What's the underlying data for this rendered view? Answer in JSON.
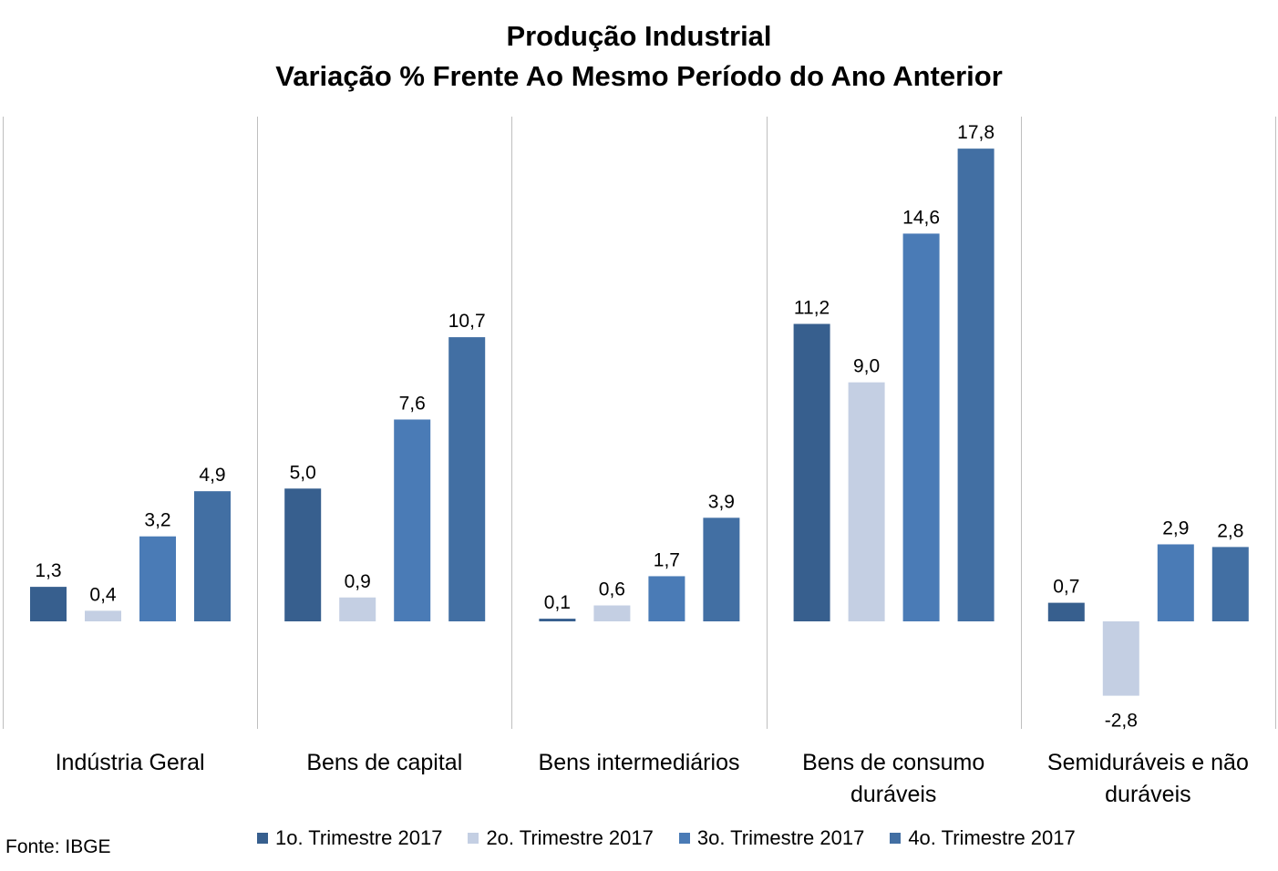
{
  "chart_data": {
    "type": "bar",
    "title": "Produção Industrial",
    "subtitle": "Variação % Frente Ao Mesmo Período do Ano Anterior",
    "categories": [
      "Indústria Geral",
      "Bens de capital",
      "Bens intermediários",
      "Bens de consumo duráveis",
      "Semiduráveis e não duráveis"
    ],
    "series": [
      {
        "name": "1o. Trimestre 2017",
        "color": "#375F8E",
        "values": [
          1.3,
          5.0,
          0.1,
          11.2,
          0.7
        ],
        "labels": [
          "1,3",
          "5,0",
          "0,1",
          "11,2",
          "0,7"
        ]
      },
      {
        "name": "2o. Trimestre 2017",
        "color": "#C4CFE3",
        "values": [
          0.4,
          0.9,
          0.6,
          9.0,
          -2.8
        ],
        "labels": [
          "0,4",
          "0,9",
          "0,6",
          "9,0",
          "-2,8"
        ]
      },
      {
        "name": "3o. Trimestre 2017",
        "color": "#4A7BB6",
        "values": [
          3.2,
          7.6,
          1.7,
          14.6,
          2.9
        ],
        "labels": [
          "3,2",
          "7,6",
          "1,7",
          "14,6",
          "2,9"
        ]
      },
      {
        "name": "4o. Trimestre 2017",
        "color": "#426FA3",
        "values": [
          4.9,
          10.7,
          3.9,
          17.8,
          2.8
        ],
        "labels": [
          "4,9",
          "10,7",
          "3,9",
          "17,8",
          "2,8"
        ]
      }
    ],
    "ylim": [
      -4,
      19
    ],
    "grid": false,
    "legend_position": "bottom"
  },
  "source": "Fonte: IBGE"
}
